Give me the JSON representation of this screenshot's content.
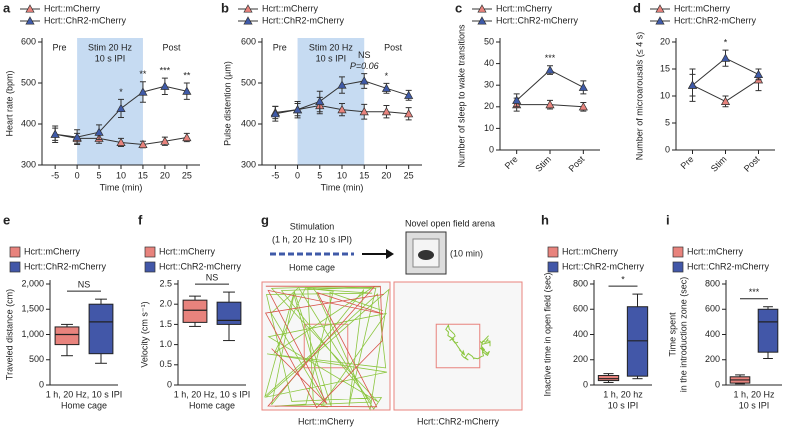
{
  "chart_data": [
    {
      "panel": "a",
      "type": "line",
      "ylabel": "Heart rate (bpm)",
      "xlabel": "Time (min)",
      "x": [
        -5,
        0,
        5,
        10,
        15,
        20,
        25
      ],
      "xlim": [
        -8,
        28
      ],
      "xticks": [
        -5,
        0,
        5,
        10,
        15,
        20,
        25
      ],
      "ylim": [
        300,
        600
      ],
      "yticks": [
        300,
        400,
        500,
        600
      ],
      "shade": [
        0,
        15
      ],
      "phase_labels": {
        "pre": "Pre",
        "stim": [
          "Stim 20 Hz",
          "10 s IPI"
        ],
        "post": "Post"
      },
      "series": [
        {
          "name": "Hcrt::mCherry",
          "color": "#e8837d",
          "values": [
            375,
            365,
            365,
            355,
            350,
            358,
            367
          ],
          "errors": [
            15,
            12,
            12,
            10,
            8,
            10,
            10
          ]
        },
        {
          "name": "Hcrt::ChR2-mCherry",
          "color": "#3f5aa8",
          "values": [
            375,
            368,
            380,
            438,
            478,
            492,
            480
          ],
          "errors": [
            20,
            18,
            18,
            22,
            25,
            20,
            20
          ]
        }
      ],
      "annotations": [
        {
          "text": "*",
          "x": 10
        },
        {
          "text": "**",
          "x": 15
        },
        {
          "text": "***",
          "x": 20
        },
        {
          "text": "**",
          "x": 25
        }
      ]
    },
    {
      "panel": "b",
      "type": "line",
      "ylabel": "Pulse distention (µm)",
      "xlabel": "Time (min)",
      "x": [
        -5,
        0,
        5,
        10,
        15,
        20,
        25
      ],
      "xlim": [
        -8,
        28
      ],
      "xticks": [
        -5,
        0,
        5,
        10,
        15,
        20,
        25
      ],
      "ylim": [
        300,
        600
      ],
      "yticks": [
        300,
        400,
        500,
        600
      ],
      "shade": [
        0,
        15
      ],
      "phase_labels": {
        "pre": "Pre",
        "stim": [
          "Stim 20 Hz",
          "10 s IPI"
        ],
        "post": "Post"
      },
      "series": [
        {
          "name": "Hcrt::mCherry",
          "color": "#e8837d",
          "values": [
            428,
            435,
            445,
            435,
            430,
            430,
            425
          ],
          "errors": [
            15,
            15,
            20,
            15,
            18,
            15,
            15
          ]
        },
        {
          "name": "Hcrt::ChR2-mCherry",
          "color": "#3f5aa8",
          "values": [
            425,
            435,
            455,
            495,
            505,
            487,
            470
          ],
          "errors": [
            18,
            20,
            25,
            20,
            18,
            12,
            12
          ]
        }
      ],
      "annotations": [
        {
          "text": "NS",
          "x": 15
        },
        {
          "text": "P=0.06",
          "x": 15
        },
        {
          "text": "*",
          "x": 20
        }
      ]
    },
    {
      "panel": "c",
      "type": "line",
      "ylabel": "Number of sleep to wake transitions",
      "categories": [
        "Pre",
        "Stim",
        "Post"
      ],
      "ylim": [
        0,
        50
      ],
      "yticks": [
        0,
        10,
        20,
        30,
        40,
        50
      ],
      "series": [
        {
          "name": "Hcrt::mCherry",
          "color": "#e8837d",
          "values": [
            21,
            21,
            20
          ],
          "errors": [
            3,
            2,
            2
          ]
        },
        {
          "name": "Hcrt::ChR2-mCherry",
          "color": "#3f5aa8",
          "values": [
            23,
            37,
            29
          ],
          "errors": [
            3,
            2,
            3
          ]
        }
      ],
      "annotations": [
        {
          "text": "***",
          "x": "Stim"
        }
      ]
    },
    {
      "panel": "d",
      "type": "line",
      "ylabel": "Number of microarousals (≤ 4 s)",
      "categories": [
        "Pre",
        "Stim",
        "Post"
      ],
      "ylim": [
        0,
        20
      ],
      "yticks": [
        0,
        5,
        10,
        15,
        20
      ],
      "series": [
        {
          "name": "Hcrt::mCherry",
          "color": "#e8837d",
          "values": [
            12,
            9,
            13
          ],
          "errors": [
            3,
            1,
            2
          ]
        },
        {
          "name": "Hcrt::ChR2-mCherry",
          "color": "#3f5aa8",
          "values": [
            12,
            17,
            14
          ],
          "errors": [
            2,
            1.5,
            1
          ]
        }
      ],
      "annotations": [
        {
          "text": "*",
          "x": "Stim"
        }
      ]
    },
    {
      "panel": "e",
      "type": "box",
      "ylabel": "Traveled distance (cm)",
      "xlabel": [
        "1 h, 20 Hz, 10 s IPI",
        "Home cage"
      ],
      "ylim": [
        0,
        2000
      ],
      "yticks": [
        0,
        500,
        {
          "value": 1000,
          "label": "1,000"
        },
        {
          "value": 1500,
          "label": "1,500"
        },
        {
          "value": 2000,
          "label": "2,000"
        }
      ],
      "series": [
        {
          "name": "Hcrt::mCherry",
          "color": "#e8837d",
          "min": 580,
          "q1": 800,
          "median": 1000,
          "q3": 1150,
          "max": 1200
        },
        {
          "name": "Hcrt::ChR2-mCherry",
          "color": "#4257a8",
          "min": 430,
          "q1": 620,
          "median": 1250,
          "q3": 1600,
          "max": 1700
        }
      ],
      "annotation": "NS"
    },
    {
      "panel": "f",
      "type": "box",
      "ylabel": "Velocity (cm s⁻¹)",
      "xlabel": [
        "1 h, 20 Hz, 10 s IPI",
        "Home cage"
      ],
      "ylim": [
        0,
        2.5
      ],
      "yticks": [
        0,
        0.5,
        {
          "value": 1,
          "label": "1.0"
        },
        1.5,
        {
          "value": 2,
          "label": "2.0"
        },
        2.5
      ],
      "series": [
        {
          "name": "Hcrt::mCherry",
          "color": "#e8837d",
          "min": 1.45,
          "q1": 1.55,
          "median": 1.85,
          "q3": 2.1,
          "max": 2.2
        },
        {
          "name": "Hcrt::ChR2-mCherry",
          "color": "#4257a8",
          "min": 1.1,
          "q1": 1.5,
          "median": 1.6,
          "q3": 2.05,
          "max": 2.3
        }
      ],
      "annotation": "NS"
    },
    {
      "panel": "g",
      "type": "diagram",
      "stimulation": "Stimulation",
      "stim_params": "(1 h, 20 Hz 10 s IPI)",
      "home_cage": "Home cage",
      "arena": "Novel open field arena",
      "duration": "(10 min)",
      "captions": [
        "Hcrt::mCherry",
        "Hcrt::ChR2-mCherry"
      ]
    },
    {
      "panel": "h",
      "type": "box",
      "ylabel": "Inactive time in open field (sec)",
      "xlabel": [
        "1 h, 20 hz",
        "10 s IPI"
      ],
      "ylim": [
        0,
        800
      ],
      "yticks": [
        0,
        200,
        400,
        600,
        800
      ],
      "series": [
        {
          "name": "Hcrt::mCherry",
          "color": "#e8837d",
          "min": 20,
          "q1": 35,
          "median": 50,
          "q3": 75,
          "max": 90
        },
        {
          "name": "Hcrt::ChR2-mCherry",
          "color": "#4257a8",
          "min": 50,
          "q1": 70,
          "median": 350,
          "q3": 620,
          "max": 720
        }
      ],
      "annotation": "*"
    },
    {
      "panel": "i",
      "type": "box",
      "ylabel": [
        "Time spent",
        "in the introduction zone (sec)"
      ],
      "xlabel": [
        "1 h, 20 Hz",
        "10 s IPI"
      ],
      "ylim": [
        0,
        800
      ],
      "yticks": [
        0,
        200,
        400,
        600,
        800
      ],
      "series": [
        {
          "name": "Hcrt::mCherry",
          "color": "#e8837d",
          "min": 10,
          "q1": 15,
          "median": 40,
          "q3": 65,
          "max": 80
        },
        {
          "name": "Hcrt::ChR2-mCherry",
          "color": "#4257a8",
          "min": 210,
          "q1": 260,
          "median": 500,
          "q3": 600,
          "max": 620
        }
      ],
      "annotation": "***"
    }
  ]
}
